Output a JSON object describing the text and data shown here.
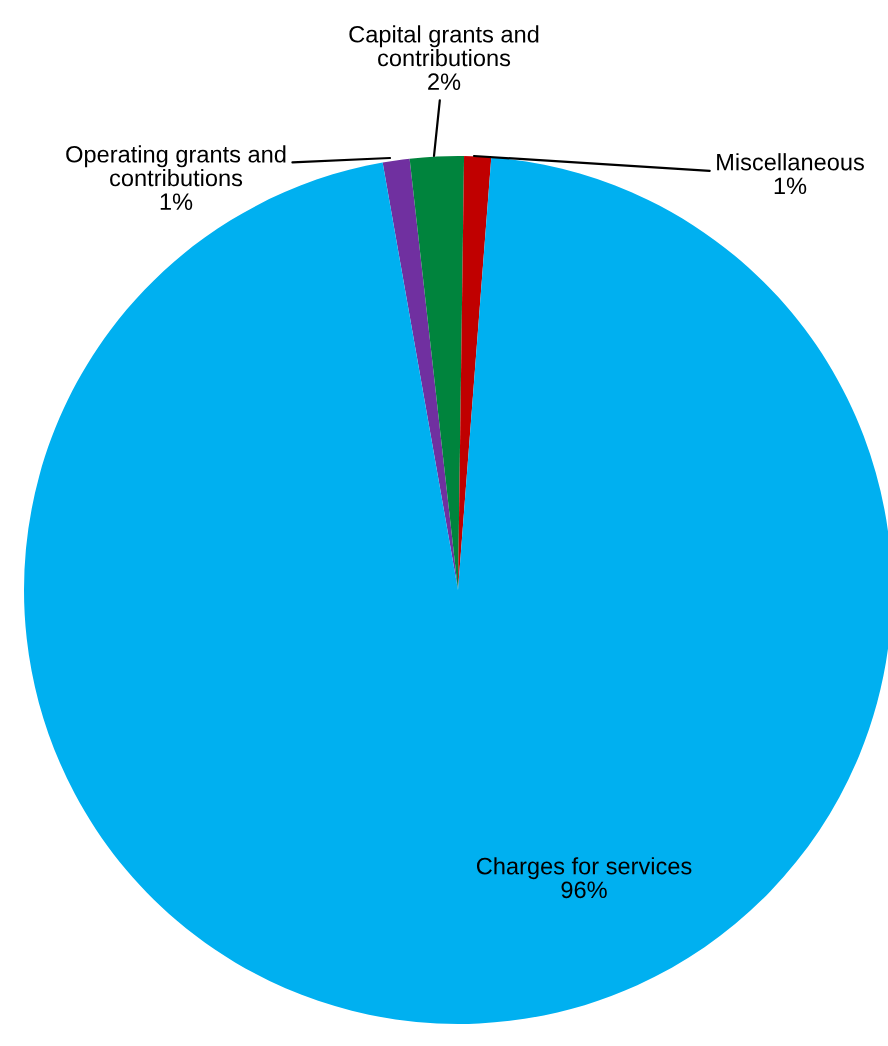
{
  "chart_data": {
    "type": "pie",
    "categories": [
      "Operating grants and\ncontributions",
      "Capital grants and\ncontributions",
      "Miscellaneous",
      "Charges for services"
    ],
    "values": [
      1,
      2,
      1,
      96
    ],
    "colors": [
      "#7030a0",
      "#00843d",
      "#c00000",
      "#00b0f0"
    ],
    "value_labels": [
      "1%",
      "2%",
      "1%",
      "96%"
    ]
  }
}
